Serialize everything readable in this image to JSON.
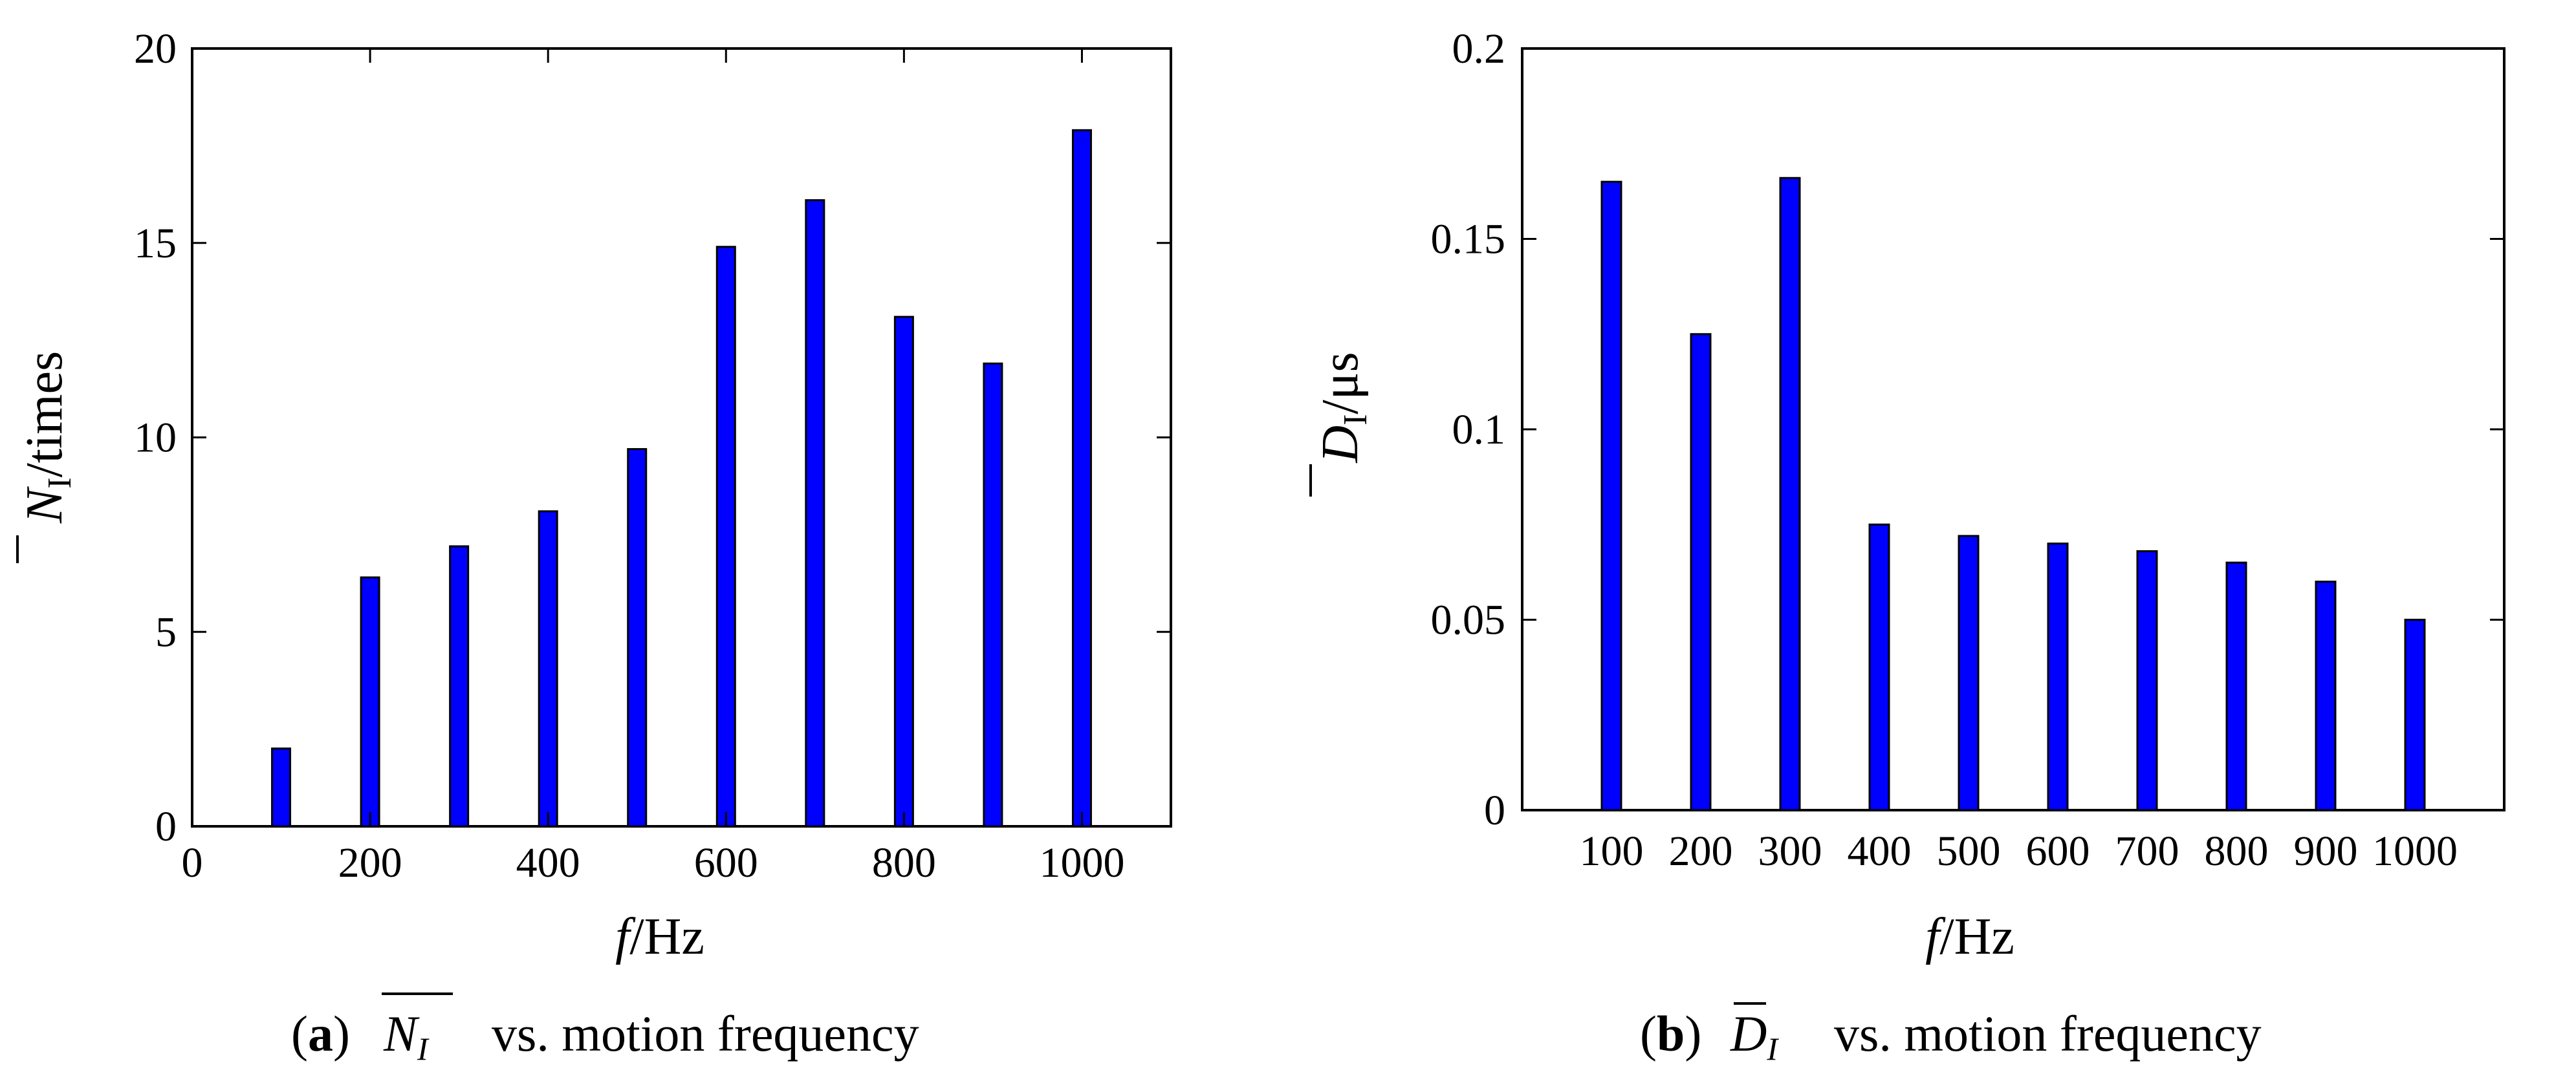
{
  "chart_data": [
    {
      "id": "a",
      "type": "bar",
      "x": [
        100,
        200,
        300,
        400,
        500,
        600,
        700,
        800,
        900,
        1000
      ],
      "values": [
        2,
        6.4,
        7.2,
        8.1,
        9.7,
        14.9,
        16.1,
        13.1,
        11.9,
        17.9
      ],
      "xlim": [
        0,
        1100
      ],
      "ylim": [
        0,
        20
      ],
      "xticks": [
        "0",
        "200",
        "400",
        "600",
        "800",
        "1000"
      ],
      "yticks": [
        "0",
        "5",
        "10",
        "15",
        "20"
      ],
      "ylabel": {
        "symbol": "N",
        "subscript": "I",
        "unit": "/times"
      },
      "xlabel": {
        "symbol": "f",
        "unit": "/Hz"
      },
      "caption": {
        "prefix": "(",
        "letter": "a",
        "close": ")",
        "symbol": "N",
        "subscript": "I",
        "text": "vs. motion frequency"
      },
      "bar_color": "#0000ff",
      "grid": false,
      "legend": "none"
    },
    {
      "id": "b",
      "type": "bar",
      "categories": [
        "100",
        "200",
        "300",
        "400",
        "500",
        "600",
        "700",
        "800",
        "900",
        "1000"
      ],
      "values": [
        0.165,
        0.125,
        0.166,
        0.075,
        0.072,
        0.07,
        0.068,
        0.065,
        0.06,
        0.05
      ],
      "ylim": [
        0,
        0.2
      ],
      "yticks": [
        "0",
        "0.05",
        "0.1",
        "0.15",
        "0.2"
      ],
      "ylabel": {
        "symbol": "D",
        "subscript": "I",
        "unit": "/μs"
      },
      "xlabel": {
        "symbol": "f",
        "unit": "/Hz"
      },
      "caption": {
        "prefix": "(",
        "letter": "b",
        "close": ")",
        "symbol": "D",
        "subscript": "I",
        "text": "vs. motion frequency"
      },
      "bar_color": "#0000ff",
      "grid": false,
      "legend": "none"
    }
  ]
}
